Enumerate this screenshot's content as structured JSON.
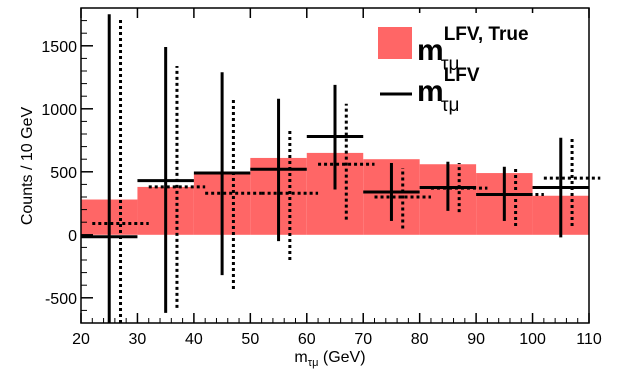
{
  "chart_data": {
    "type": "bar",
    "xlabel": {
      "main": "m",
      "sub": "τμ",
      "unit": " (GeV)"
    },
    "ylabel": "Counts / 10 GeV",
    "xlim": [
      20,
      110
    ],
    "ylim": [
      -700,
      1800
    ],
    "xticks": [
      20,
      30,
      40,
      50,
      60,
      70,
      80,
      90,
      100,
      110
    ],
    "yticks": [
      -500,
      0,
      500,
      1000,
      1500
    ],
    "xtick_labels": [
      "20",
      "30",
      "40",
      "50",
      "60",
      "70",
      "80",
      "90",
      "100",
      "110"
    ],
    "ytick_labels": [
      "-500",
      "0",
      "500",
      "1000",
      "1500"
    ],
    "grid": false,
    "legend_position": "top-right",
    "colors": {
      "true_fill": "#ff6666",
      "estimator": "#000000"
    },
    "histogram": {
      "name_main": "m",
      "name_sup": "LFV, True",
      "name_sub": "τμ",
      "bin_edges": [
        20,
        30,
        40,
        50,
        60,
        70,
        80,
        90,
        100,
        110
      ],
      "values": [
        280,
        380,
        480,
        610,
        650,
        600,
        560,
        490,
        310
      ]
    },
    "series": [
      {
        "name_main": "m",
        "name_sup": "LFV",
        "name_sub": "τμ",
        "style": "solid",
        "x": [
          25,
          35,
          45,
          55,
          65,
          75,
          85,
          95,
          105
        ],
        "y": [
          -15,
          430,
          490,
          520,
          780,
          340,
          375,
          320,
          375
        ],
        "x_half_width": [
          5,
          5,
          5,
          5,
          5,
          5,
          5,
          5,
          5
        ],
        "y_low": [
          -700,
          -620,
          -320,
          -50,
          360,
          110,
          190,
          110,
          -20
        ],
        "y_high": [
          1750,
          1490,
          1290,
          1080,
          1190,
          570,
          580,
          540,
          770
        ]
      },
      {
        "name": "",
        "style": "dotted",
        "x": [
          27,
          37,
          47,
          57,
          67,
          77,
          87,
          97,
          107
        ],
        "y": [
          90,
          380,
          330,
          330,
          560,
          300,
          370,
          320,
          450
        ],
        "x_half_width": [
          5,
          5,
          5,
          5,
          5,
          5,
          5,
          5,
          5
        ],
        "y_low": [
          -700,
          -580,
          -430,
          -200,
          120,
          50,
          180,
          70,
          70
        ],
        "y_high": [
          1720,
          1340,
          1070,
          830,
          1040,
          530,
          570,
          540,
          780
        ]
      }
    ]
  }
}
